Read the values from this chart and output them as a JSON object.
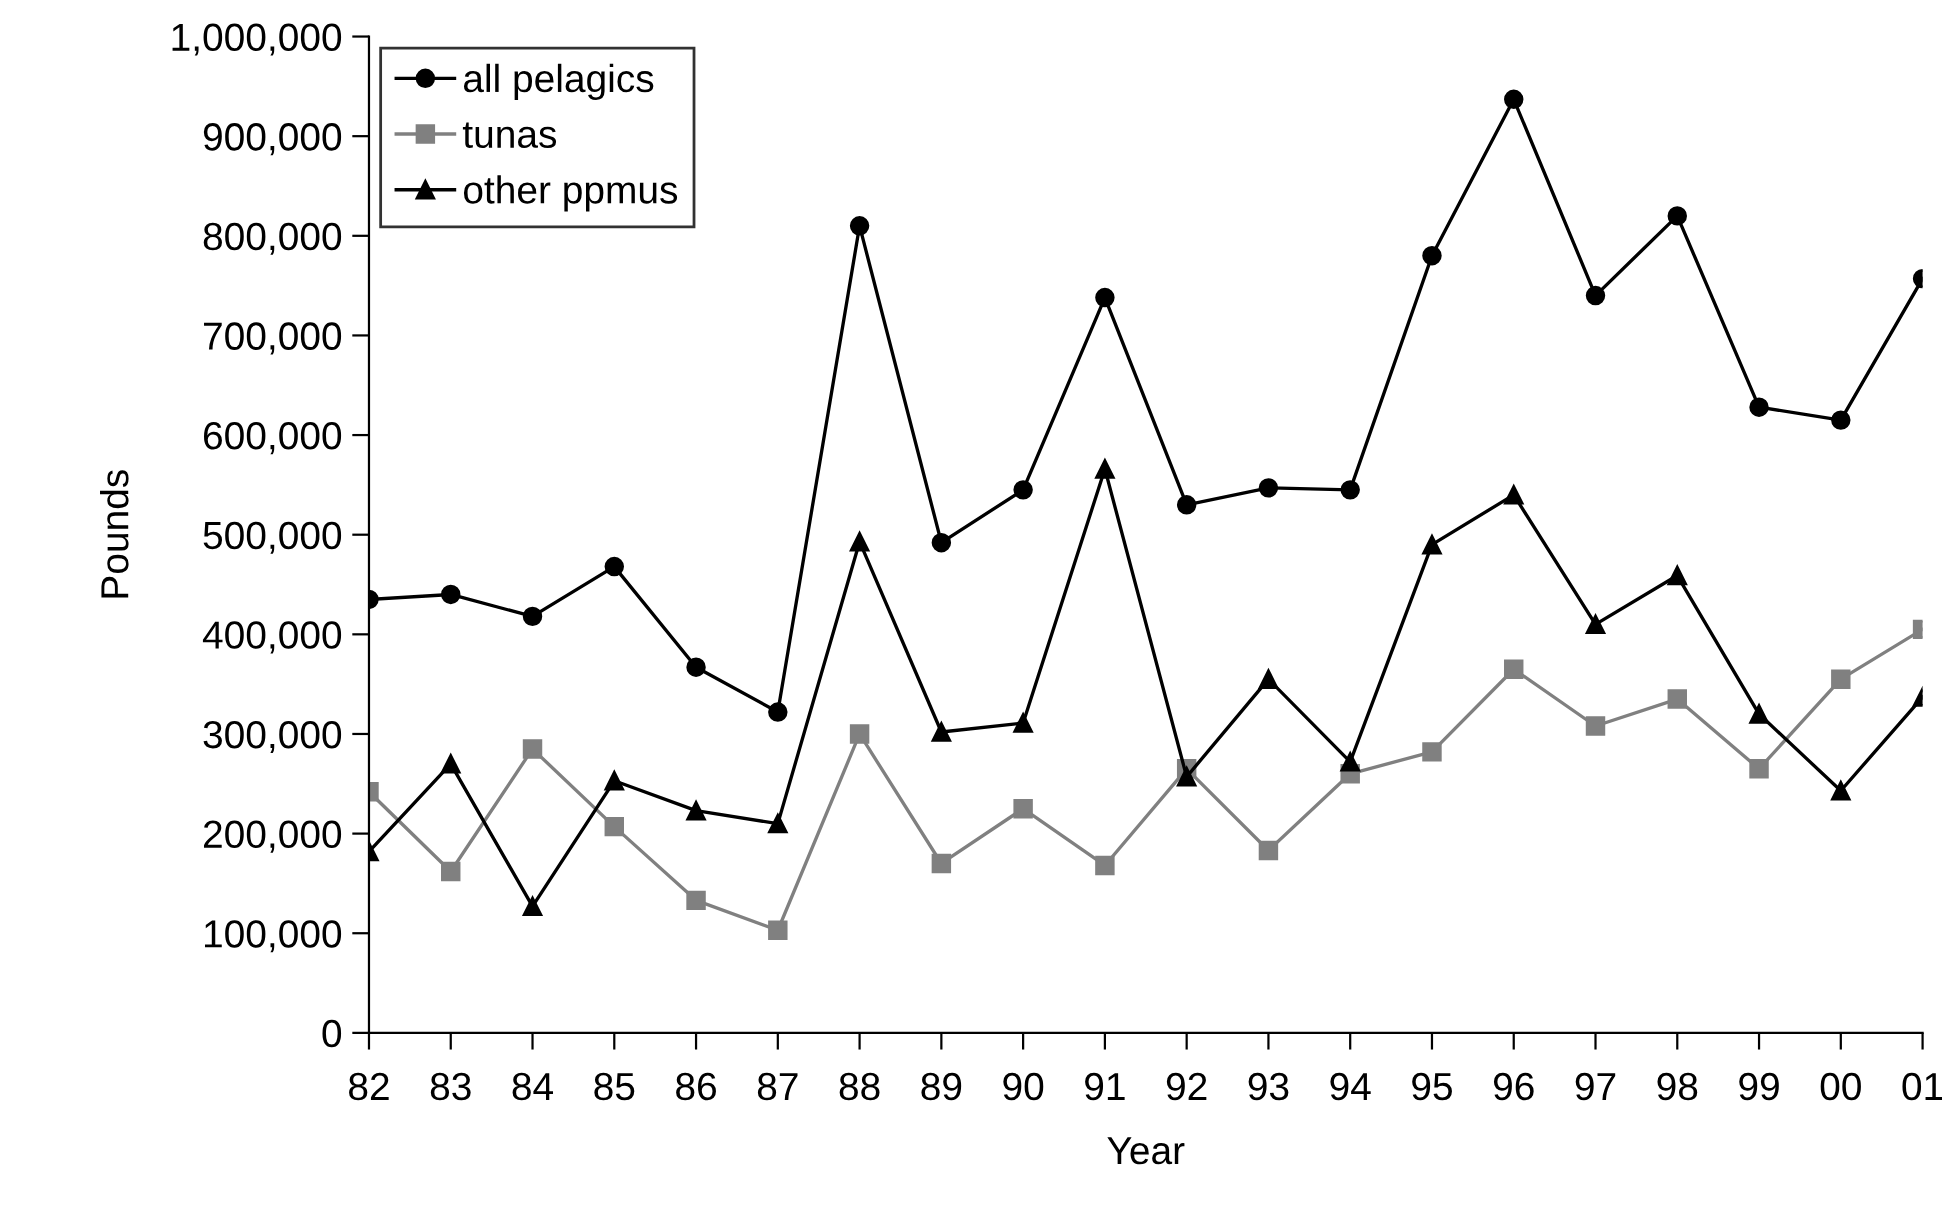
{
  "chart_data": {
    "type": "line",
    "xlabel": "Year",
    "ylabel": "Pounds",
    "categories": [
      "82",
      "83",
      "84",
      "85",
      "86",
      "87",
      "88",
      "89",
      "90",
      "91",
      "92",
      "93",
      "94",
      "95",
      "96",
      "97",
      "98",
      "99",
      "00",
      "01"
    ],
    "ylim": [
      0,
      1000000
    ],
    "yticks": [
      0,
      {
        "value": 100000,
        "label": "100,000"
      },
      {
        "value": 200000,
        "label": "200,000"
      },
      {
        "value": 300000,
        "label": "300,000"
      },
      {
        "value": 400000,
        "label": "400,000"
      },
      {
        "value": 500000,
        "label": "500,000"
      },
      {
        "value": 600000,
        "label": "600,000"
      },
      {
        "value": 700000,
        "label": "700,000"
      },
      {
        "value": 800000,
        "label": "800,000"
      },
      {
        "value": 900000,
        "label": "900,000"
      },
      {
        "value": 1000000,
        "label": "1,000,000"
      }
    ],
    "grid": false,
    "legend": "top left",
    "line_style": "solid",
    "series": [
      {
        "name": "all pelagics",
        "color": "#000000",
        "marker": "circle",
        "values": [
          435000,
          440000,
          418000,
          468000,
          367000,
          322000,
          810000,
          492000,
          545000,
          738000,
          530000,
          547000,
          545000,
          780000,
          937000,
          740000,
          820000,
          628000,
          615000,
          757000
        ]
      },
      {
        "name": "tunas",
        "color": "#808080",
        "marker": "square",
        "values": [
          242000,
          162000,
          285000,
          207000,
          133000,
          103000,
          300000,
          170000,
          225000,
          168000,
          265000,
          183000,
          260000,
          282000,
          365000,
          308000,
          335000,
          265000,
          355000,
          405000
        ]
      },
      {
        "name": "other ppmus",
        "color": "#000000",
        "marker": "triangle",
        "values": [
          182000,
          270000,
          127000,
          253000,
          223000,
          210000,
          493000,
          302000,
          311000,
          566000,
          257000,
          355000,
          272000,
          490000,
          540000,
          410000,
          459000,
          320000,
          243000,
          337000
        ]
      }
    ]
  }
}
